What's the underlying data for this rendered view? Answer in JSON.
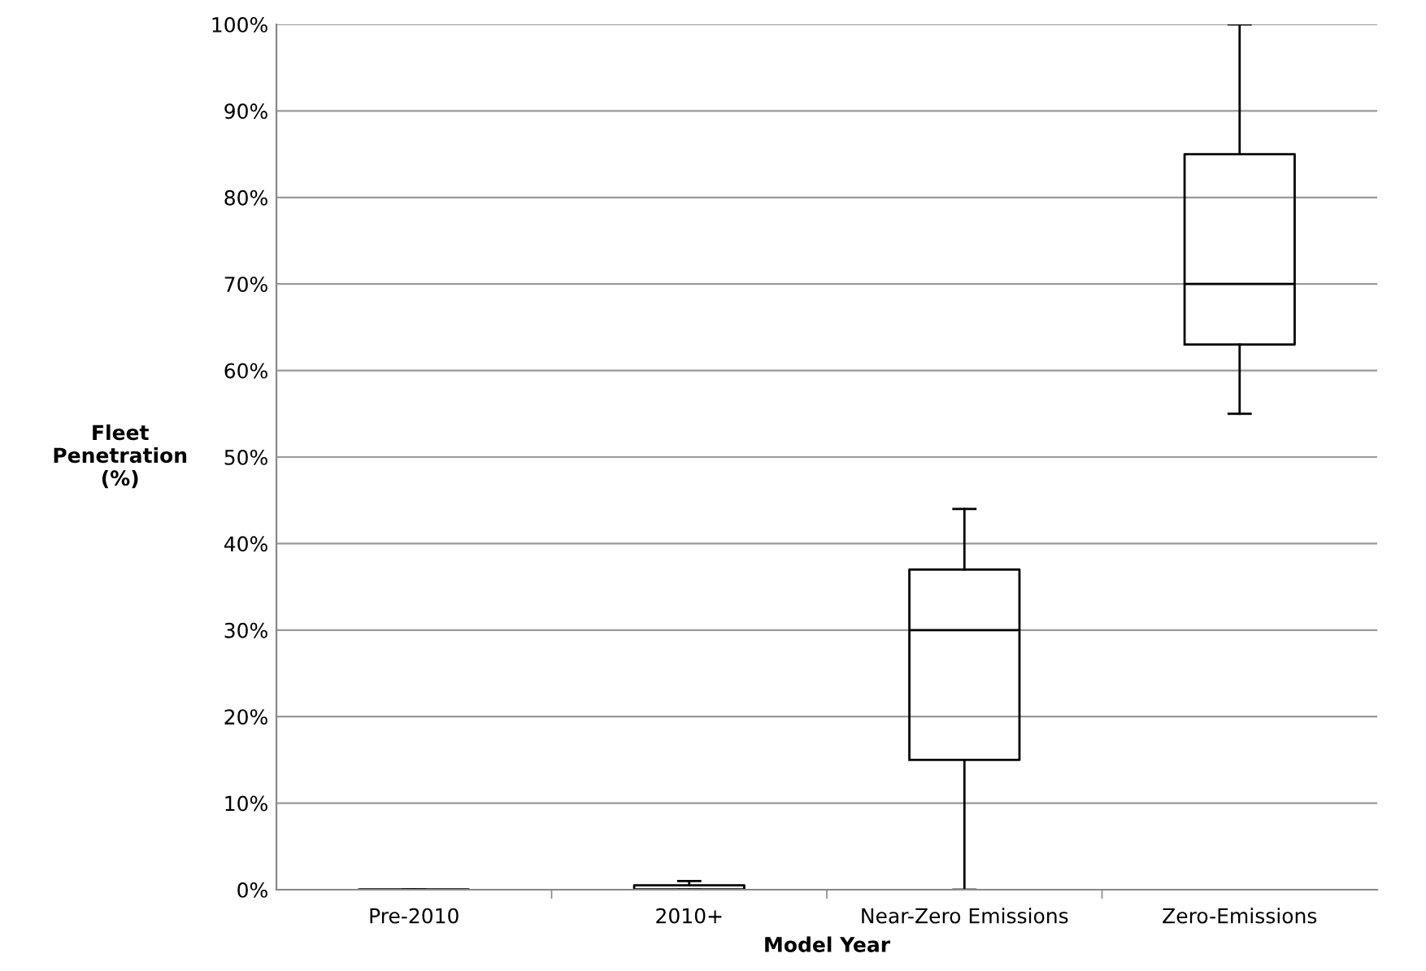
{
  "chart_data": {
    "type": "box",
    "xlabel": "Model Year",
    "ylabel": "Fleet\nPenetration\n(%)",
    "categories": [
      "Pre-2010",
      "2010+",
      "Near-Zero Emissions",
      "Zero-Emissions"
    ],
    "boxes": [
      {
        "low": 0,
        "q1": 0,
        "median": 0,
        "q3": 0,
        "high": 0
      },
      {
        "low": 0,
        "q1": 0,
        "median": 0,
        "q3": 0.5,
        "high": 1
      },
      {
        "low": 0,
        "q1": 15,
        "median": 30,
        "q3": 37,
        "high": 44
      },
      {
        "low": 55,
        "q1": 63,
        "median": 70,
        "q3": 85,
        "high": 100
      }
    ],
    "ylim": [
      0,
      100
    ],
    "yticks": [
      {
        "value": 0,
        "label": "0%"
      },
      {
        "value": 10,
        "label": "10%"
      },
      {
        "value": 20,
        "label": "20%"
      },
      {
        "value": 30,
        "label": "30%"
      },
      {
        "value": 40,
        "label": "40%"
      },
      {
        "value": 50,
        "label": "50%"
      },
      {
        "value": 60,
        "label": "60%"
      },
      {
        "value": 70,
        "label": "70%"
      },
      {
        "value": 80,
        "label": "80%"
      },
      {
        "value": 90,
        "label": "90%"
      },
      {
        "value": 100,
        "label": "100%"
      }
    ],
    "grid": "y",
    "legend": false
  }
}
